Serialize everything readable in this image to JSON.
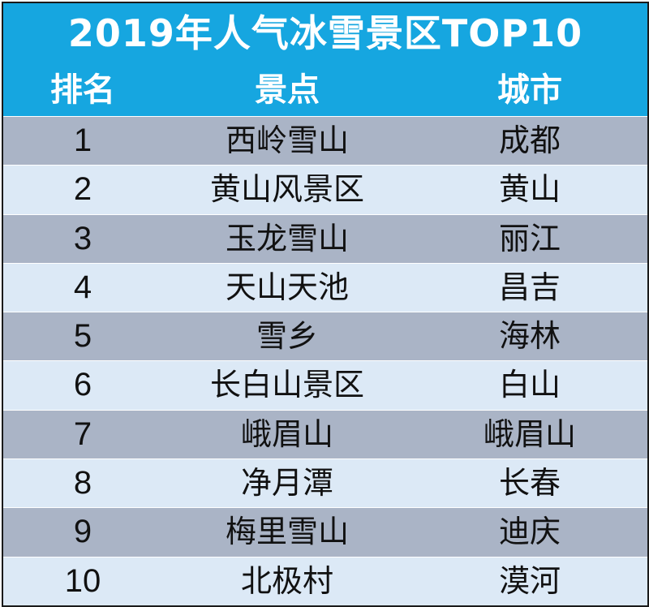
{
  "title": "2019年人气冰雪景区TOP10",
  "columns": {
    "rank": "排名",
    "spot": "景点",
    "city": "城市"
  },
  "colors": {
    "header_bg": "#16a6e0",
    "row_dark": "#aab4c6",
    "row_light": "#dce9f6"
  },
  "rows": [
    {
      "rank": "1",
      "spot": "西岭雪山",
      "city": "成都"
    },
    {
      "rank": "2",
      "spot": "黄山风景区",
      "city": "黄山"
    },
    {
      "rank": "3",
      "spot": "玉龙雪山",
      "city": "丽江"
    },
    {
      "rank": "4",
      "spot": "天山天池",
      "city": "昌吉"
    },
    {
      "rank": "5",
      "spot": "雪乡",
      "city": "海林"
    },
    {
      "rank": "6",
      "spot": "长白山景区",
      "city": "白山"
    },
    {
      "rank": "7",
      "spot": "峨眉山",
      "city": "峨眉山"
    },
    {
      "rank": "8",
      "spot": "净月潭",
      "city": "长春"
    },
    {
      "rank": "9",
      "spot": "梅里雪山",
      "city": "迪庆"
    },
    {
      "rank": "10",
      "spot": "北极村",
      "city": "漠河"
    }
  ]
}
